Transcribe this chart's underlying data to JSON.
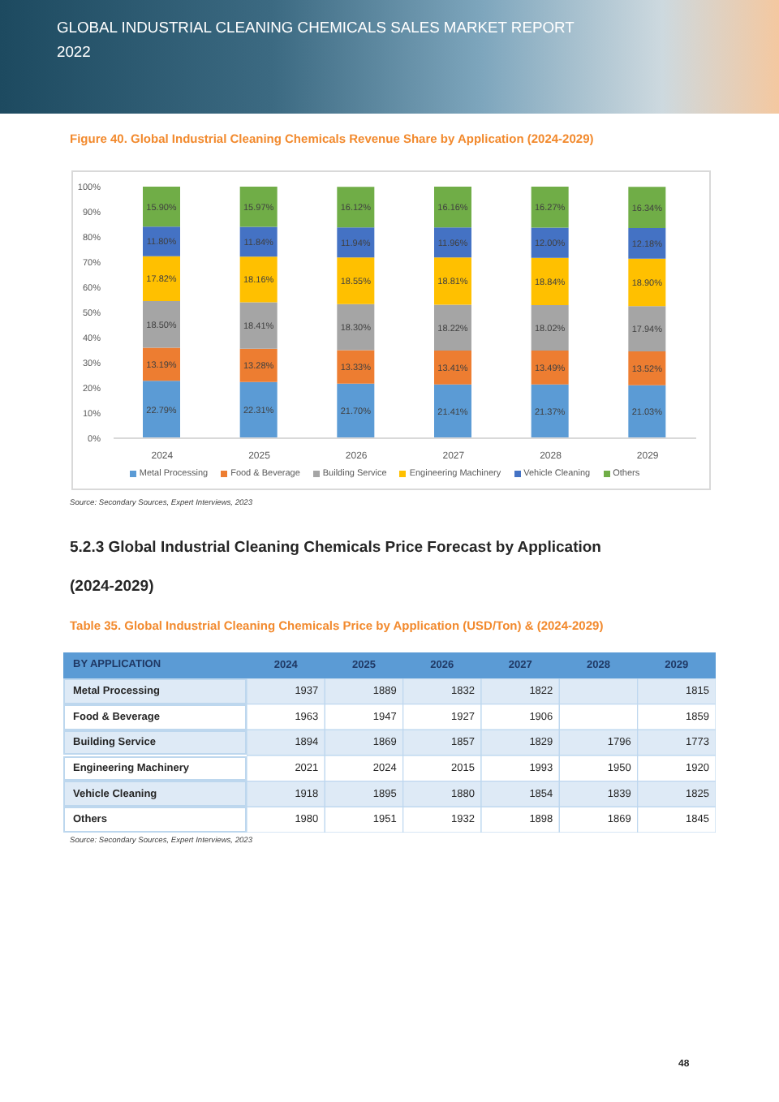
{
  "chart_data": [
    {
      "type": "bar",
      "title": "Figure 40. Global Industrial Cleaning Chemicals Revenue Share by Application (2024-2029)",
      "categories": [
        "2024",
        "2025",
        "2026",
        "2027",
        "2028",
        "2029"
      ],
      "stacked": true,
      "ylim": [
        0,
        100
      ],
      "yticks": [
        {
          "value": 0,
          "label": "0%"
        },
        {
          "value": 10,
          "label": "10%"
        },
        {
          "value": 20,
          "label": "20%"
        },
        {
          "value": 30,
          "label": "30%"
        },
        {
          "value": 40,
          "label": "40%"
        },
        {
          "value": 50,
          "label": "50%"
        },
        {
          "value": 60,
          "label": "60%"
        },
        {
          "value": 70,
          "label": "70%"
        },
        {
          "value": 80,
          "label": "80%"
        },
        {
          "value": 90,
          "label": "90%"
        },
        {
          "value": 100,
          "label": "100%"
        }
      ],
      "legend": "bottom",
      "series": [
        {
          "name": "Metal Processing",
          "color": "#5b9bd5",
          "values": [
            22.79,
            22.31,
            21.7,
            21.41,
            21.37,
            21.03
          ],
          "value_labels": [
            "22.79%",
            "22.31%",
            "21.70%",
            "21.41%",
            "21.37%",
            "21.03%"
          ]
        },
        {
          "name": "Food & Beverage",
          "color": "#ed7d31",
          "values": [
            13.19,
            13.28,
            13.33,
            13.41,
            13.49,
            13.52
          ],
          "value_labels": [
            "13.19%",
            "13.28%",
            "13.33%",
            "13.41%",
            "13.49%",
            "13.52%"
          ]
        },
        {
          "name": "Building Service",
          "color": "#a5a5a5",
          "values": [
            18.5,
            18.41,
            18.3,
            18.22,
            18.02,
            17.94
          ],
          "value_labels": [
            "18.50%",
            "18.41%",
            "18.30%",
            "18.22%",
            "18.02%",
            "17.94%"
          ]
        },
        {
          "name": "Engineering Machinery",
          "color": "#ffc000",
          "values": [
            17.82,
            18.16,
            18.55,
            18.81,
            18.84,
            18.9
          ],
          "value_labels": [
            "17.82%",
            "18.16%",
            "18.55%",
            "18.81%",
            "18.84%",
            "18.90%"
          ]
        },
        {
          "name": "Vehicle Cleaning",
          "color": "#4472c4",
          "values": [
            11.8,
            11.84,
            11.94,
            11.96,
            12.0,
            12.18
          ],
          "value_labels": [
            "11.80%",
            "11.84%",
            "11.94%",
            "11.96%",
            "12.00%",
            "12.18%"
          ]
        },
        {
          "name": "Others",
          "color": "#70ad47",
          "values": [
            15.9,
            15.97,
            16.12,
            16.16,
            16.27,
            16.34
          ],
          "value_labels": [
            "15.90%",
            "15.97%",
            "16.12%",
            "16.16%",
            "16.27%",
            "16.34%"
          ]
        }
      ],
      "annotations": [
        "GLOBAL INDUSTRIAL CLEANING CHEMICALS SALES MARKET REPORT 2022",
        "Source: Secondary Sources, Expert Interviews, 2023"
      ]
    },
    {
      "type": "heatmap",
      "title": "5.2.3 Global Industrial Cleaning Chemicals Price Forecast by Application (2024-2029)",
      "subtitle": "Table 35. Global Industrial Cleaning Chemicals Price by Application (USD/Ton) & (2024-2029)",
      "ylabel": "BY APPLICATION",
      "categories": [
        "2024",
        "2025",
        "2026",
        "2027",
        "2028",
        "2029"
      ],
      "y_categories": [
        "Metal Processing",
        "Food & Beverage",
        "Building Service",
        "Engineering Machinery",
        "Vehicle Cleaning",
        "Others"
      ],
      "data_labels": true,
      "cells": [
        [
          1937,
          1889,
          1832,
          1822,
          null,
          1815
        ],
        [
          1963,
          1947,
          1927,
          1906,
          null,
          1859
        ],
        [
          1894,
          1869,
          1857,
          1829,
          1796,
          1773
        ],
        [
          2021,
          2024,
          2015,
          1993,
          1950,
          1920
        ],
        [
          1918,
          1895,
          1880,
          1854,
          1839,
          1825
        ],
        [
          1980,
          1951,
          1932,
          1898,
          1869,
          1845
        ]
      ],
      "annotations": [
        "Source: Secondary Sources, Expert Interviews, 2023",
        "48"
      ]
    }
  ]
}
